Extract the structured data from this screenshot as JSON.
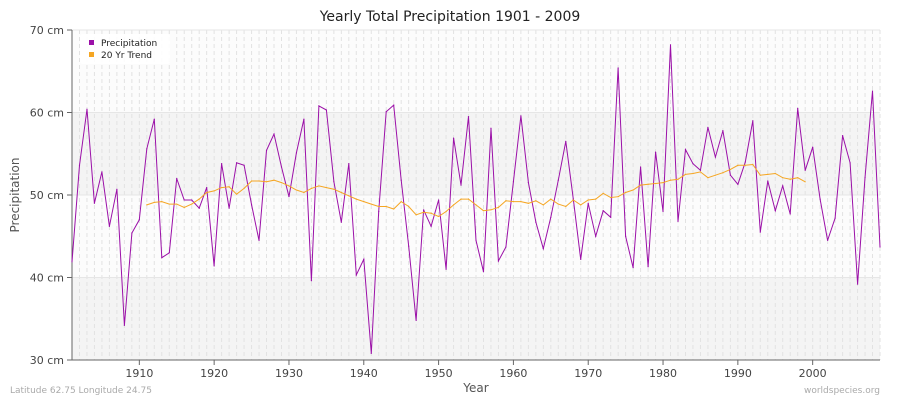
{
  "chart_data": {
    "type": "line",
    "title": "Yearly Total Precipitation 1901 - 2009",
    "xlabel": "Year",
    "ylabel": "Precipitation",
    "xlim": [
      1901,
      2009
    ],
    "ylim": [
      30,
      70
    ],
    "y_ticks": [
      30,
      40,
      50,
      60,
      70
    ],
    "y_tick_labels": [
      "30 cm",
      "40 cm",
      "50 cm",
      "60 cm",
      "70 cm"
    ],
    "x_ticks": [
      1910,
      1920,
      1930,
      1940,
      1950,
      1960,
      1970,
      1980,
      1990,
      2000
    ],
    "x_tick_labels": [
      "1910",
      "1920",
      "1930",
      "1940",
      "1950",
      "1960",
      "1970",
      "1980",
      "1990",
      "2000"
    ],
    "grid": true,
    "legend_placement": "top-left",
    "series": [
      {
        "name": "Precipitation",
        "color": "#9b10a8",
        "x_start": 1901,
        "values": [
          41.9,
          53.6,
          60.4,
          49.0,
          52.8,
          46.2,
          50.7,
          34.2,
          45.4,
          47.0,
          55.6,
          59.2,
          42.4,
          43.0,
          52.0,
          49.4,
          49.4,
          48.4,
          50.9,
          41.4,
          53.8,
          48.4,
          53.9,
          53.6,
          48.8,
          44.5,
          55.4,
          57.4,
          53.4,
          49.8,
          55.1,
          59.2,
          39.6,
          60.8,
          60.3,
          51.6,
          46.7,
          53.8,
          40.3,
          42.2,
          30.8,
          48.0,
          60.1,
          60.9,
          51.8,
          43.8,
          34.8,
          48.2,
          46.2,
          49.4,
          41.0,
          56.9,
          51.2,
          59.5,
          44.5,
          40.7,
          58.1,
          42.0,
          43.7,
          51.6,
          59.6,
          51.5,
          46.7,
          43.5,
          47.3,
          51.8,
          56.5,
          49.5,
          42.2,
          49.0,
          45.0,
          48.1,
          47.3,
          65.4,
          45.0,
          41.2,
          53.4,
          41.3,
          55.2,
          48.0,
          68.2,
          46.8,
          55.5,
          53.8,
          53.0,
          58.2,
          54.6,
          57.8,
          52.4,
          51.3,
          54.0,
          59.0,
          45.5,
          51.7,
          48.1,
          51.1,
          47.7,
          60.5,
          53.0,
          55.8,
          49.5,
          44.5,
          47.2,
          57.2,
          53.9,
          39.2,
          52.1,
          62.6,
          43.7
        ]
      },
      {
        "name": "20 Yr Trend",
        "color": "#f5a623",
        "x_start": 1911,
        "values": [
          48.8,
          49.1,
          49.2,
          48.9,
          48.9,
          48.5,
          48.9,
          49.5,
          50.3,
          50.5,
          50.9,
          51.0,
          50.1,
          50.8,
          51.7,
          51.7,
          51.6,
          51.8,
          51.5,
          51.1,
          50.6,
          50.3,
          50.8,
          51.1,
          50.9,
          50.7,
          50.3,
          49.9,
          49.5,
          49.2,
          48.9,
          48.6,
          48.6,
          48.3,
          49.2,
          48.6,
          47.6,
          47.9,
          47.8,
          47.4,
          48.0,
          48.8,
          49.5,
          49.5,
          48.8,
          48.1,
          48.2,
          48.5,
          49.3,
          49.2,
          49.2,
          49.0,
          49.3,
          48.8,
          49.5,
          48.9,
          48.6,
          49.4,
          48.8,
          49.4,
          49.5,
          50.2,
          49.7,
          49.8,
          50.3,
          50.6,
          51.2,
          51.3,
          51.4,
          51.5,
          51.8,
          51.9,
          52.5,
          52.6,
          52.8,
          52.1,
          52.4,
          52.7,
          53.1,
          53.6,
          53.6,
          53.7,
          52.4,
          52.5,
          52.6,
          52.1,
          51.9,
          52.1,
          51.6
        ]
      }
    ]
  },
  "footer": {
    "location": "Latitude 62.75 Longitude 24.75",
    "source": "worldspecies.org"
  }
}
